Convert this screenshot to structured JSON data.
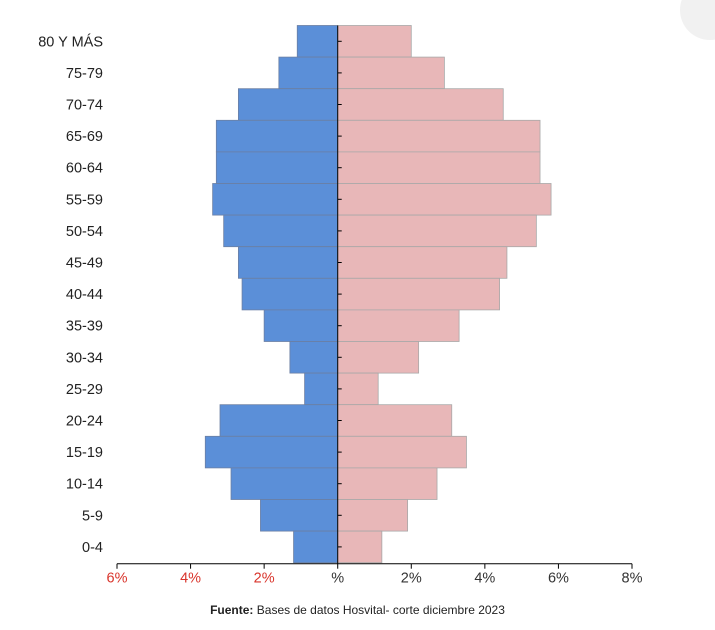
{
  "chart_data": {
    "type": "bar",
    "orientation": "horizontal",
    "chart_kind": "population-pyramid",
    "categories": [
      "80 Y MÁS",
      "75-79",
      "70-74",
      "65-69",
      "60-64",
      "55-59",
      "50-54",
      "45-49",
      "40-44",
      "35-39",
      "30-34",
      "25-29",
      "20-24",
      "15-19",
      "10-14",
      "5-9",
      "0-4"
    ],
    "series": [
      {
        "color": "#5b8fd8",
        "side": "left",
        "values": [
          1.1,
          1.6,
          2.7,
          3.3,
          3.3,
          3.4,
          3.1,
          2.7,
          2.6,
          2.0,
          1.3,
          0.9,
          3.2,
          3.6,
          2.9,
          2.1,
          1.2
        ]
      },
      {
        "color": "#e8b7b8",
        "side": "right",
        "values": [
          2.0,
          2.9,
          4.5,
          5.5,
          5.5,
          5.8,
          5.4,
          4.6,
          4.4,
          3.3,
          2.2,
          1.1,
          3.1,
          3.5,
          2.7,
          1.9,
          1.2
        ]
      }
    ],
    "xlim": [
      -6,
      8
    ],
    "x_ticks": [
      {
        "value": -6,
        "label": "6%",
        "color": "#d9342b"
      },
      {
        "value": -4,
        "label": "4%",
        "color": "#d9342b"
      },
      {
        "value": -2,
        "label": "2%",
        "color": "#d9342b"
      },
      {
        "value": 0,
        "label": "%",
        "color": "#333333"
      },
      {
        "value": 2,
        "label": "2%",
        "color": "#333333"
      },
      {
        "value": 4,
        "label": "4%",
        "color": "#333333"
      },
      {
        "value": 6,
        "label": "6%",
        "color": "#333333"
      },
      {
        "value": 8,
        "label": "8%",
        "color": "#333333"
      }
    ],
    "grid": false,
    "legend": "none"
  },
  "source": {
    "label": "Fuente:",
    "text": " Bases de datos Hosvital- corte diciembre 2023"
  }
}
